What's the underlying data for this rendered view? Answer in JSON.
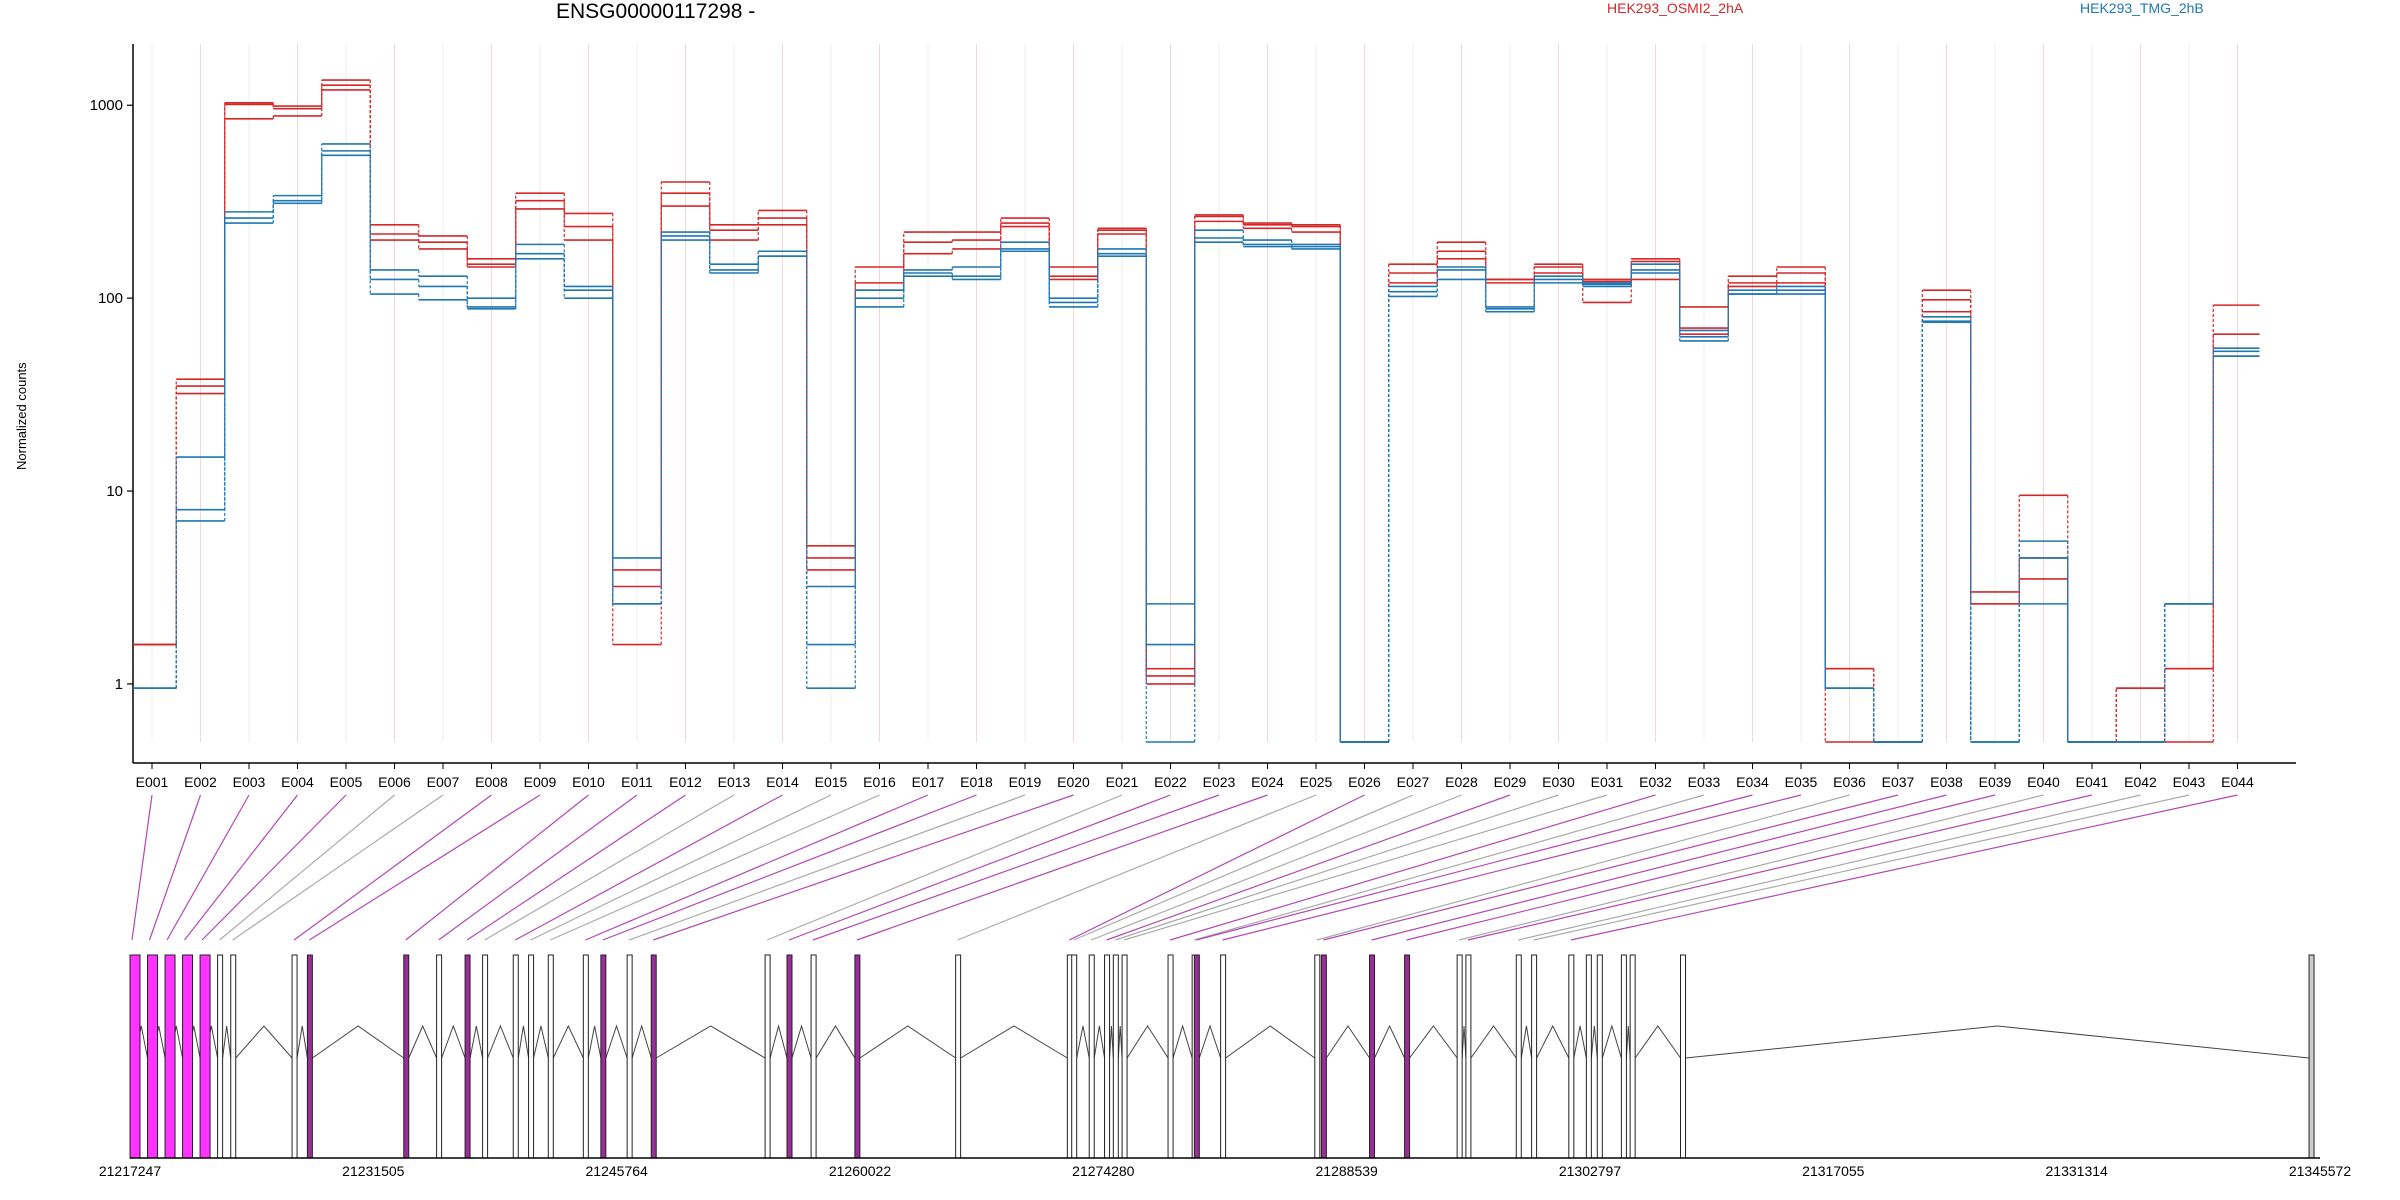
{
  "title": "ENSG00000117298 -",
  "ylabel": "Normalized counts",
  "legend": [
    "HEK293_OSMI2_2hA",
    "HEK293_TMG_2hB"
  ],
  "colors": {
    "osmi": "#d62728",
    "tmg": "#1f77b4",
    "highlight": "#ff33ff",
    "purple": "#9b2d9b",
    "gray": "#999999"
  },
  "chart_data": {
    "type": "line",
    "title": "ENSG00000117298 -",
    "xlabel": "",
    "ylabel": "Normalized counts",
    "yscale": "log",
    "ylim": [
      0.5,
      1800
    ],
    "yticks": [
      1,
      10,
      100,
      1000
    ],
    "ytick_labels": [
      "1",
      "10",
      "100",
      "1000"
    ],
    "categories": [
      "E001",
      "E002",
      "E003",
      "E004",
      "E005",
      "E006",
      "E007",
      "E008",
      "E009",
      "E010",
      "E011",
      "E012",
      "E013",
      "E014",
      "E015",
      "E016",
      "E017",
      "E018",
      "E019",
      "E020",
      "E021",
      "E022",
      "E023",
      "E024",
      "E025",
      "E026",
      "E027",
      "E028",
      "E029",
      "E030",
      "E031",
      "E032",
      "E033",
      "E034",
      "E035",
      "E036",
      "E037",
      "E038",
      "E039",
      "E040",
      "E041",
      "E042",
      "E043",
      "E044"
    ],
    "series": [
      {
        "name": "HEK293_OSMI2_2hA",
        "group": "osmi",
        "values": [
          1.6,
          38,
          1030,
          990,
          1350,
          240,
          210,
          160,
          350,
          275,
          1.6,
          400,
          240,
          285,
          4.5,
          145,
          220,
          220,
          260,
          145,
          230,
          1.0,
          270,
          245,
          240,
          0.5,
          150,
          195,
          125,
          150,
          125,
          160,
          90,
          130,
          145,
          1.2,
          0.5,
          110,
          3.0,
          9.5,
          0.5,
          0.95,
          0.5,
          92
        ]
      },
      {
        "name": "HEK293_OSMI2_2hA",
        "group": "osmi",
        "values": [
          1.6,
          35,
          1010,
          960,
          1270,
          215,
          195,
          150,
          320,
          235,
          3.2,
          350,
          225,
          260,
          5.2,
          120,
          195,
          200,
          245,
          130,
          225,
          1.2,
          265,
          240,
          235,
          0.5,
          135,
          175,
          125,
          145,
          122,
          155,
          70,
          120,
          135,
          1.2,
          0.5,
          98,
          2.6,
          4.5,
          0.5,
          0.95,
          1.2,
          65
        ]
      },
      {
        "name": "HEK293_OSMI2_2hA",
        "group": "osmi",
        "values": [
          1.6,
          32,
          850,
          880,
          1200,
          200,
          180,
          145,
          290,
          200,
          3.9,
          300,
          200,
          240,
          3.9,
          110,
          170,
          180,
          235,
          125,
          215,
          1.1,
          250,
          230,
          220,
          0.5,
          120,
          160,
          120,
          135,
          95,
          125,
          65,
          115,
          120,
          0.5,
          0.5,
          85,
          2.6,
          3.5,
          0.5,
          0.5,
          1.2,
          50
        ]
      },
      {
        "name": "HEK293_TMG_2hB",
        "group": "tmg",
        "values": [
          0.95,
          15,
          280,
          340,
          630,
          140,
          130,
          100,
          190,
          115,
          4.5,
          220,
          150,
          175,
          1.6,
          110,
          140,
          145,
          195,
          100,
          180,
          2.6,
          225,
          200,
          190,
          0.5,
          115,
          145,
          90,
          130,
          120,
          150,
          68,
          110,
          115,
          0.95,
          0.5,
          80,
          0.5,
          5.5,
          0.5,
          0.5,
          2.6,
          55
        ]
      },
      {
        "name": "HEK293_TMG_2hB",
        "group": "tmg",
        "values": [
          0.95,
          8,
          260,
          320,
          580,
          125,
          115,
          90,
          170,
          110,
          2.6,
          210,
          140,
          165,
          3.2,
          100,
          135,
          130,
          180,
          95,
          170,
          1.6,
          205,
          190,
          185,
          0.5,
          108,
          140,
          88,
          125,
          118,
          140,
          63,
          105,
          110,
          0.95,
          0.5,
          76,
          0.5,
          4.5,
          0.5,
          0.5,
          2.6,
          53
        ]
      },
      {
        "name": "HEK293_TMG_2hB",
        "group": "tmg",
        "values": [
          0.95,
          7,
          245,
          310,
          550,
          105,
          98,
          88,
          160,
          100,
          2.6,
          200,
          135,
          165,
          0.95,
          90,
          130,
          125,
          175,
          90,
          165,
          0.5,
          195,
          185,
          180,
          0.5,
          102,
          125,
          85,
          120,
          115,
          135,
          60,
          105,
          105,
          0.95,
          0.5,
          75,
          0.5,
          2.6,
          0.5,
          0.5,
          2.6,
          50
        ]
      }
    ],
    "gene_model": {
      "coordinate_labels": [
        "21217247",
        "21231505",
        "21245764",
        "21260022",
        "21274280",
        "21288539",
        "21302797",
        "21317055",
        "21331314",
        "21345572"
      ],
      "exon_positions": [
        0.0,
        0.008,
        0.016,
        0.024,
        0.032,
        0.04,
        0.046,
        0.074,
        0.081,
        0.125,
        0.14,
        0.153,
        0.161,
        0.175,
        0.182,
        0.191,
        0.207,
        0.215,
        0.227,
        0.238,
        0.29,
        0.3,
        0.311,
        0.331,
        0.377,
        0.428,
        0.43,
        0.438,
        0.445,
        0.449,
        0.453,
        0.474,
        0.485,
        0.486,
        0.498,
        0.541,
        0.544,
        0.566,
        0.582,
        0.606,
        0.61,
        0.633,
        0.64,
        0.657,
        0.665,
        0.67,
        0.681,
        0.685,
        0.708,
        0.995
      ],
      "exon_links": [
        0,
        1,
        2,
        3,
        4,
        5,
        6,
        7,
        8,
        9,
        10,
        11,
        12,
        13,
        14,
        15,
        16,
        17,
        18,
        19,
        20,
        21,
        22,
        23,
        24,
        25,
        26,
        27,
        28,
        29,
        30,
        31,
        32,
        33,
        34,
        35,
        36,
        37,
        38,
        39,
        40,
        41,
        42,
        43
      ],
      "highlighted_exons": [
        0,
        1,
        2,
        3,
        4,
        8,
        9,
        11,
        17,
        19,
        21,
        23,
        33,
        36,
        37,
        38
      ]
    }
  }
}
